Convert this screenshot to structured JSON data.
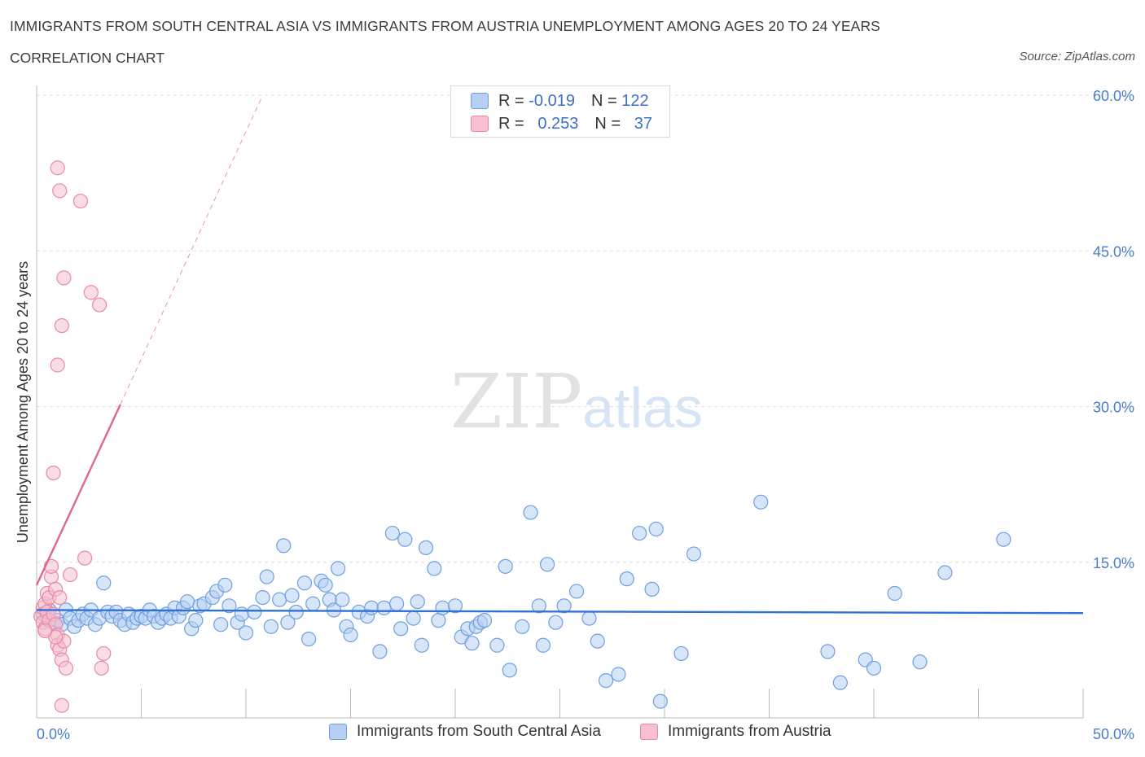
{
  "header": {
    "title": "IMMIGRANTS FROM SOUTH CENTRAL ASIA VS IMMIGRANTS FROM AUSTRIA UNEMPLOYMENT AMONG AGES 20 TO 24 YEARS",
    "subtitle": "CORRELATION CHART",
    "source": "Source: ZipAtlas.com"
  },
  "legend": {
    "rows": [
      {
        "r_label": "R =",
        "r_value": "-0.019",
        "n_label": "N =",
        "n_value": "122"
      },
      {
        "r_label": "R =",
        "r_value": "0.253",
        "n_label": "N =",
        "n_value": "37"
      }
    ],
    "series_labels": [
      "Immigrants from South Central Asia",
      "Immigrants from Austria"
    ]
  },
  "watermark": {
    "zip": "ZIP",
    "atlas": "atlas"
  },
  "colors": {
    "blue_fill": "#b7d0f2",
    "blue_stroke": "#6f9fe0",
    "blue_line": "#2f72d6",
    "pink_fill": "#f6c0d0",
    "pink_stroke": "#e889a8",
    "pink_line": "#e0668f",
    "grid": "#dedede",
    "axis_text": "#4a7cc9"
  },
  "chart_data": {
    "type": "scatter",
    "title": "IMMIGRANTS FROM SOUTH CENTRAL ASIA VS IMMIGRANTS FROM AUSTRIA UNEMPLOYMENT AMONG AGES 20 TO 24 YEARS",
    "xlabel": "",
    "ylabel": "Unemployment Among Ages 20 to 24 years",
    "xlim": [
      0,
      50
    ],
    "ylim": [
      0,
      60
    ],
    "x_tick_labels": [
      "0.0%",
      "50.0%"
    ],
    "y_ticks": [
      15,
      30,
      45,
      60
    ],
    "y_tick_labels": [
      "15.0%",
      "30.0%",
      "45.0%",
      "60.0%"
    ],
    "grid": true,
    "legend_position": "top-center",
    "series": [
      {
        "name": "Immigrants from South Central Asia",
        "R": -0.019,
        "N": 122,
        "trend": {
          "x": [
            0,
            50
          ],
          "y": [
            10.4,
            10.1
          ]
        },
        "points": [
          [
            0.3,
            10.0
          ],
          [
            0.5,
            9.6
          ],
          [
            0.6,
            10.4
          ],
          [
            0.8,
            9.2
          ],
          [
            1.0,
            9.4
          ],
          [
            1.2,
            9.0
          ],
          [
            1.4,
            10.4
          ],
          [
            1.6,
            9.6
          ],
          [
            1.8,
            8.8
          ],
          [
            2.0,
            9.4
          ],
          [
            2.2,
            10.0
          ],
          [
            2.4,
            9.6
          ],
          [
            2.6,
            10.4
          ],
          [
            2.8,
            9.0
          ],
          [
            3.0,
            9.6
          ],
          [
            3.2,
            13.0
          ],
          [
            3.4,
            10.2
          ],
          [
            3.6,
            9.8
          ],
          [
            3.8,
            10.2
          ],
          [
            4.0,
            9.4
          ],
          [
            4.2,
            9.0
          ],
          [
            4.4,
            10.0
          ],
          [
            4.6,
            9.2
          ],
          [
            4.8,
            9.6
          ],
          [
            5.0,
            9.8
          ],
          [
            5.2,
            9.6
          ],
          [
            5.4,
            10.4
          ],
          [
            5.6,
            9.8
          ],
          [
            5.8,
            9.2
          ],
          [
            6.0,
            9.6
          ],
          [
            6.2,
            10.0
          ],
          [
            6.4,
            9.6
          ],
          [
            6.6,
            10.6
          ],
          [
            6.8,
            9.8
          ],
          [
            7.0,
            10.6
          ],
          [
            7.2,
            11.2
          ],
          [
            7.4,
            8.6
          ],
          [
            7.6,
            9.4
          ],
          [
            7.8,
            10.8
          ],
          [
            8.0,
            11.0
          ],
          [
            8.4,
            11.6
          ],
          [
            8.6,
            12.2
          ],
          [
            8.8,
            9.0
          ],
          [
            9.0,
            12.8
          ],
          [
            9.2,
            10.8
          ],
          [
            9.6,
            9.2
          ],
          [
            9.8,
            10.0
          ],
          [
            10.0,
            8.2
          ],
          [
            10.4,
            10.2
          ],
          [
            10.8,
            11.6
          ],
          [
            11.0,
            13.6
          ],
          [
            11.2,
            8.8
          ],
          [
            11.6,
            11.4
          ],
          [
            11.8,
            16.6
          ],
          [
            12.0,
            9.2
          ],
          [
            12.2,
            11.8
          ],
          [
            12.4,
            10.2
          ],
          [
            12.8,
            13.0
          ],
          [
            13.0,
            7.6
          ],
          [
            13.2,
            11.0
          ],
          [
            13.6,
            13.2
          ],
          [
            13.8,
            12.8
          ],
          [
            14.0,
            11.4
          ],
          [
            14.2,
            10.4
          ],
          [
            14.4,
            14.4
          ],
          [
            14.6,
            11.4
          ],
          [
            14.8,
            8.8
          ],
          [
            15.0,
            8.0
          ],
          [
            15.4,
            10.2
          ],
          [
            15.8,
            9.8
          ],
          [
            16.0,
            10.6
          ],
          [
            16.4,
            6.4
          ],
          [
            16.6,
            10.6
          ],
          [
            17.0,
            17.8
          ],
          [
            17.2,
            11.0
          ],
          [
            17.4,
            8.6
          ],
          [
            17.6,
            17.2
          ],
          [
            18.0,
            9.6
          ],
          [
            18.2,
            11.2
          ],
          [
            18.4,
            7.0
          ],
          [
            18.6,
            16.4
          ],
          [
            19.0,
            14.4
          ],
          [
            19.2,
            9.4
          ],
          [
            19.4,
            10.6
          ],
          [
            20.0,
            10.8
          ],
          [
            20.3,
            7.8
          ],
          [
            20.6,
            8.6
          ],
          [
            20.8,
            7.2
          ],
          [
            21.0,
            8.8
          ],
          [
            21.2,
            9.2
          ],
          [
            21.4,
            9.4
          ],
          [
            22.0,
            7.0
          ],
          [
            22.4,
            14.6
          ],
          [
            22.6,
            4.6
          ],
          [
            23.2,
            8.8
          ],
          [
            23.6,
            19.8
          ],
          [
            24.0,
            10.8
          ],
          [
            24.2,
            7.0
          ],
          [
            24.4,
            14.8
          ],
          [
            24.8,
            9.2
          ],
          [
            25.2,
            10.8
          ],
          [
            25.8,
            12.2
          ],
          [
            26.4,
            9.6
          ],
          [
            26.8,
            7.4
          ],
          [
            27.2,
            3.6
          ],
          [
            27.8,
            4.2
          ],
          [
            28.2,
            13.4
          ],
          [
            28.8,
            17.8
          ],
          [
            29.4,
            12.4
          ],
          [
            29.6,
            18.2
          ],
          [
            29.8,
            1.6
          ],
          [
            30.8,
            6.2
          ],
          [
            31.4,
            15.8
          ],
          [
            34.6,
            20.8
          ],
          [
            37.8,
            6.4
          ],
          [
            38.4,
            3.4
          ],
          [
            39.6,
            5.6
          ],
          [
            40.0,
            4.8
          ],
          [
            41.0,
            12.0
          ],
          [
            42.2,
            5.4
          ],
          [
            43.4,
            14.0
          ],
          [
            46.2,
            17.2
          ]
        ]
      },
      {
        "name": "Immigrants from Austria",
        "R": 0.253,
        "N": 37,
        "trend": {
          "x": [
            0,
            4.0
          ],
          "y": [
            12.8,
            30.2
          ],
          "dashed_extension": {
            "x": [
              4.0,
              10.8
            ],
            "y": [
              30.2,
              60.0
            ]
          }
        },
        "points": [
          [
            0.2,
            9.8
          ],
          [
            0.3,
            10.6
          ],
          [
            0.3,
            9.2
          ],
          [
            0.4,
            11.0
          ],
          [
            0.4,
            8.6
          ],
          [
            0.5,
            12.0
          ],
          [
            0.5,
            10.2
          ],
          [
            0.6,
            9.4
          ],
          [
            0.6,
            11.6
          ],
          [
            0.7,
            13.6
          ],
          [
            0.7,
            14.6
          ],
          [
            0.8,
            23.6
          ],
          [
            0.8,
            10.0
          ],
          [
            0.9,
            9.0
          ],
          [
            0.9,
            12.4
          ],
          [
            1.0,
            8.0
          ],
          [
            1.0,
            7.0
          ],
          [
            1.1,
            11.6
          ],
          [
            1.1,
            6.6
          ],
          [
            1.2,
            5.6
          ],
          [
            1.2,
            1.2
          ],
          [
            1.3,
            7.4
          ],
          [
            1.4,
            4.8
          ],
          [
            1.0,
            53.0
          ],
          [
            1.1,
            50.8
          ],
          [
            2.1,
            49.8
          ],
          [
            1.3,
            42.4
          ],
          [
            1.2,
            37.8
          ],
          [
            1.0,
            34.0
          ],
          [
            2.6,
            41.0
          ],
          [
            3.0,
            39.8
          ],
          [
            2.3,
            15.4
          ],
          [
            1.6,
            13.8
          ],
          [
            3.2,
            6.2
          ],
          [
            3.1,
            4.8
          ],
          [
            0.9,
            7.8
          ],
          [
            0.4,
            8.4
          ]
        ]
      }
    ]
  }
}
